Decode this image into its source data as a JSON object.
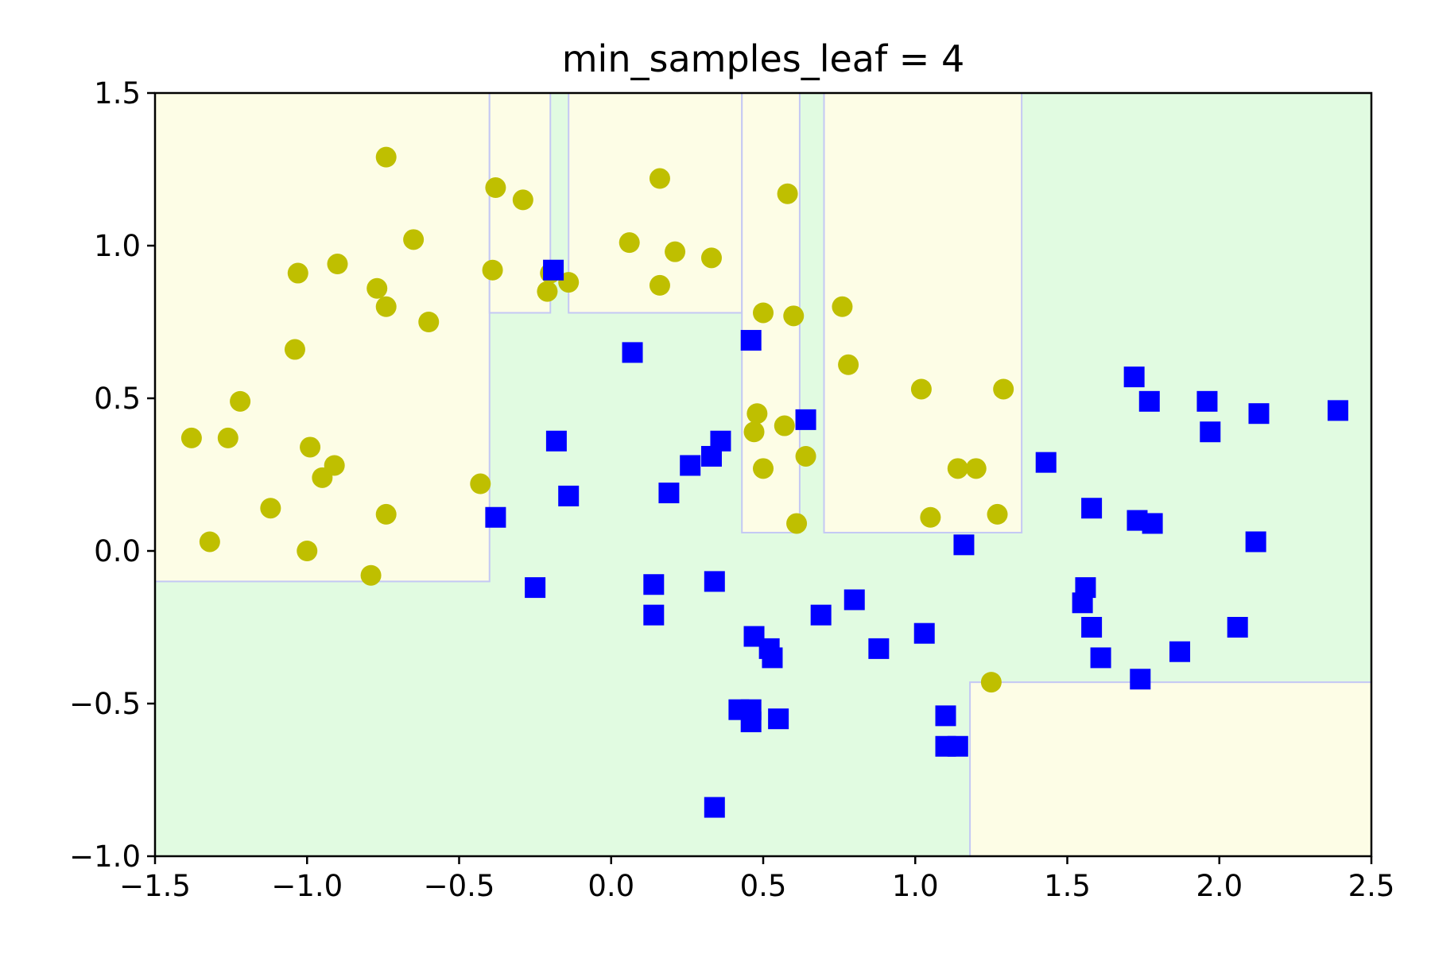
{
  "chart_data": {
    "type": "scatter",
    "title": "min_samples_leaf = 4",
    "xlabel": "",
    "ylabel": "",
    "xlim": [
      -1.5,
      2.5
    ],
    "ylim": [
      -1.0,
      1.5
    ],
    "xticks": [
      "−1.5",
      "−1.0",
      "−0.5",
      "0.0",
      "0.5",
      "1.0",
      "1.5",
      "2.0",
      "2.5"
    ],
    "yticks": [
      "−1.0",
      "−0.5",
      "0.0",
      "0.5",
      "1.0",
      "1.5"
    ],
    "grid": false,
    "colors": {
      "region_class0": "#fdfde6",
      "region_class1": "#e1fbe1",
      "boundary": "#c4c8f4",
      "class0_marker": "#bfbf00",
      "class1_marker": "#0000ff"
    },
    "decision_regions": [
      {
        "class": 0,
        "x": [
          -1.5,
          -0.4
        ],
        "y": [
          -0.1,
          1.5
        ]
      },
      {
        "class": 0,
        "x": [
          -0.4,
          -0.2
        ],
        "y": [
          0.78,
          1.5
        ]
      },
      {
        "class": 0,
        "x": [
          -0.14,
          0.43
        ],
        "y": [
          0.78,
          1.5
        ]
      },
      {
        "class": 0,
        "x": [
          0.43,
          0.62
        ],
        "y": [
          0.06,
          1.5
        ]
      },
      {
        "class": 0,
        "x": [
          0.7,
          1.35
        ],
        "y": [
          0.06,
          1.5
        ]
      },
      {
        "class": 0,
        "x": [
          1.18,
          2.5
        ],
        "y": [
          -1.0,
          -0.43
        ]
      }
    ],
    "series": [
      {
        "class": 0,
        "marker": "circle",
        "points": [
          [
            -1.38,
            0.37
          ],
          [
            -1.32,
            0.03
          ],
          [
            -1.26,
            0.37
          ],
          [
            -1.22,
            0.49
          ],
          [
            -1.12,
            0.14
          ],
          [
            -1.03,
            0.91
          ],
          [
            -1.04,
            0.66
          ],
          [
            -0.99,
            0.34
          ],
          [
            -1.0,
            0.0
          ],
          [
            -0.95,
            0.24
          ],
          [
            -0.91,
            0.28
          ],
          [
            -0.9,
            0.94
          ],
          [
            -0.77,
            0.86
          ],
          [
            -0.74,
            0.8
          ],
          [
            -0.74,
            0.12
          ],
          [
            -0.74,
            1.29
          ],
          [
            -0.79,
            -0.08
          ],
          [
            -0.65,
            1.02
          ],
          [
            -0.6,
            0.75
          ],
          [
            -0.43,
            0.22
          ],
          [
            -0.39,
            0.92
          ],
          [
            -0.38,
            1.19
          ],
          [
            -0.29,
            1.15
          ],
          [
            -0.2,
            0.91
          ],
          [
            -0.21,
            0.85
          ],
          [
            -0.14,
            0.88
          ],
          [
            0.06,
            1.01
          ],
          [
            0.16,
            1.22
          ],
          [
            0.16,
            0.87
          ],
          [
            0.21,
            0.98
          ],
          [
            0.33,
            0.96
          ],
          [
            0.5,
            0.78
          ],
          [
            0.6,
            0.77
          ],
          [
            0.58,
            1.17
          ],
          [
            0.76,
            0.8
          ],
          [
            0.78,
            0.61
          ],
          [
            0.48,
            0.45
          ],
          [
            0.47,
            0.39
          ],
          [
            0.57,
            0.41
          ],
          [
            0.5,
            0.27
          ],
          [
            0.64,
            0.31
          ],
          [
            0.61,
            0.09
          ],
          [
            1.02,
            0.53
          ],
          [
            1.29,
            0.53
          ],
          [
            1.14,
            0.27
          ],
          [
            1.2,
            0.27
          ],
          [
            1.05,
            0.11
          ],
          [
            1.27,
            0.12
          ],
          [
            1.25,
            -0.43
          ]
        ]
      },
      {
        "class": 1,
        "marker": "square",
        "points": [
          [
            -0.19,
            0.92
          ],
          [
            0.07,
            0.65
          ],
          [
            0.46,
            0.69
          ],
          [
            -0.18,
            0.36
          ],
          [
            -0.14,
            0.18
          ],
          [
            -0.38,
            0.11
          ],
          [
            -0.25,
            -0.12
          ],
          [
            0.19,
            0.19
          ],
          [
            0.26,
            0.28
          ],
          [
            0.33,
            0.31
          ],
          [
            0.36,
            0.36
          ],
          [
            0.64,
            0.43
          ],
          [
            0.14,
            -0.11
          ],
          [
            0.14,
            -0.21
          ],
          [
            0.34,
            -0.1
          ],
          [
            0.47,
            -0.28
          ],
          [
            0.52,
            -0.32
          ],
          [
            0.53,
            -0.35
          ],
          [
            0.69,
            -0.21
          ],
          [
            0.8,
            -0.16
          ],
          [
            0.88,
            -0.32
          ],
          [
            1.03,
            -0.27
          ],
          [
            0.42,
            -0.52
          ],
          [
            0.46,
            -0.52
          ],
          [
            0.46,
            -0.56
          ],
          [
            0.55,
            -0.55
          ],
          [
            1.1,
            -0.54
          ],
          [
            1.1,
            -0.64
          ],
          [
            1.14,
            -0.64
          ],
          [
            0.34,
            -0.84
          ],
          [
            1.16,
            0.02
          ],
          [
            1.43,
            0.29
          ],
          [
            1.58,
            0.14
          ],
          [
            1.72,
            0.57
          ],
          [
            1.77,
            0.49
          ],
          [
            1.96,
            0.49
          ],
          [
            1.97,
            0.39
          ],
          [
            2.13,
            0.45
          ],
          [
            2.39,
            0.46
          ],
          [
            1.73,
            0.1
          ],
          [
            1.78,
            0.09
          ],
          [
            2.12,
            0.03
          ],
          [
            1.56,
            -0.12
          ],
          [
            1.55,
            -0.17
          ],
          [
            1.58,
            -0.25
          ],
          [
            1.61,
            -0.35
          ],
          [
            1.74,
            -0.42
          ],
          [
            1.87,
            -0.33
          ],
          [
            2.06,
            -0.25
          ]
        ]
      }
    ]
  }
}
